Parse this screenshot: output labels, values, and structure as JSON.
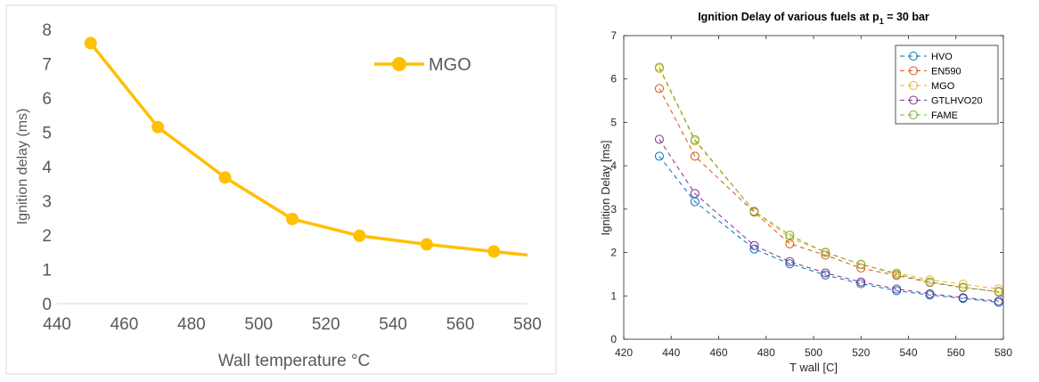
{
  "chart_data": [
    {
      "type": "line",
      "title": "",
      "xlabel": "Wall temperature °C",
      "ylabel": "Ignition delay (ms)",
      "xlim": [
        440,
        580
      ],
      "ylim": [
        0,
        8
      ],
      "xticks": [
        440,
        460,
        480,
        500,
        520,
        540,
        560,
        580
      ],
      "yticks": [
        0,
        1,
        2,
        3,
        4,
        5,
        6,
        7,
        8
      ],
      "grid": false,
      "legend_position": "top-right",
      "series": [
        {
          "name": "MGO",
          "color": "#FFC000",
          "x": [
            450,
            470,
            490,
            510,
            530,
            550,
            570,
            580
          ],
          "y": [
            7.6,
            5.15,
            3.68,
            2.47,
            1.98,
            1.73,
            1.52,
            1.42
          ],
          "markers": [
            true,
            true,
            true,
            true,
            true,
            true,
            true,
            false
          ]
        }
      ]
    },
    {
      "type": "line",
      "title": "Ignition Delay of various fuels at p",
      "title_subscript": "1",
      "title_suffix": " =  30 bar",
      "xlabel": "T wall [C]",
      "ylabel": "Ignition Delay [ms]",
      "xlim": [
        420,
        580
      ],
      "ylim": [
        0,
        7
      ],
      "xticks": [
        420,
        440,
        460,
        480,
        500,
        520,
        540,
        560,
        580
      ],
      "yticks": [
        0,
        1,
        2,
        3,
        4,
        5,
        6,
        7
      ],
      "grid": false,
      "legend_position": "top-right",
      "x": [
        435,
        450,
        475,
        490,
        505,
        520,
        535,
        549,
        563,
        578
      ],
      "series": [
        {
          "name": "HVO",
          "color": "#0072BD",
          "y": [
            4.22,
            3.17,
            2.08,
            1.74,
            1.48,
            1.28,
            1.12,
            1.02,
            0.94,
            0.85
          ]
        },
        {
          "name": "EN590",
          "color": "#D95319",
          "y": [
            5.78,
            4.22,
            2.93,
            2.2,
            1.94,
            1.64,
            1.47,
            1.31,
            1.19,
            1.1
          ]
        },
        {
          "name": "MGO",
          "color": "#EDB120",
          "y": [
            6.24,
            4.57,
            2.95,
            2.34,
            2.01,
            1.72,
            1.53,
            1.37,
            1.27,
            1.16
          ]
        },
        {
          "name": "GTLHVO20",
          "color": "#7E2F8E",
          "y": [
            4.61,
            3.36,
            2.16,
            1.79,
            1.53,
            1.32,
            1.16,
            1.05,
            0.96,
            0.88
          ]
        },
        {
          "name": "FAME",
          "color": "#77AC30",
          "y": [
            6.27,
            4.6,
            2.95,
            2.4,
            2.0,
            1.73,
            1.5,
            1.32,
            1.2,
            1.09
          ]
        }
      ]
    }
  ]
}
